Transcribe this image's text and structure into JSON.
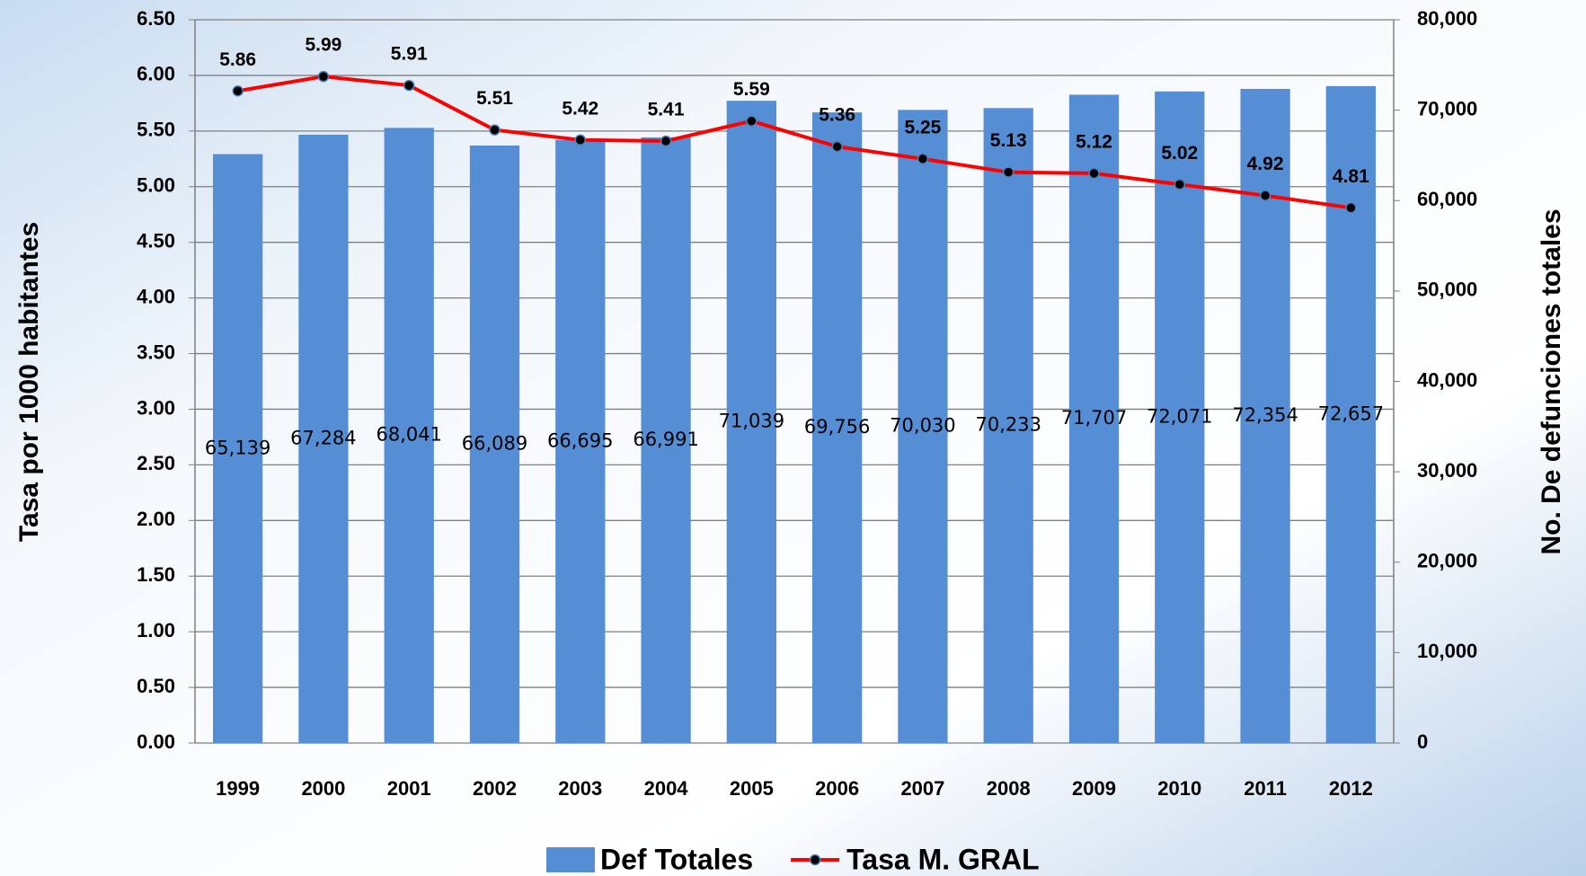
{
  "chart_data": {
    "type": "bar-line",
    "categories": [
      "1999",
      "2000",
      "2001",
      "2002",
      "2003",
      "2004",
      "2005",
      "2006",
      "2007",
      "2008",
      "2009",
      "2010",
      "2011",
      "2012"
    ],
    "series": [
      {
        "name": "Def Totales",
        "type": "bar",
        "color": "#558ed5",
        "axis": "y2",
        "values": [
          65139,
          67284,
          68041,
          66089,
          66695,
          66991,
          71039,
          69756,
          70030,
          70233,
          71707,
          72071,
          72354,
          72657
        ],
        "value_labels": [
          "65,139",
          "67,284",
          "68,041",
          "66,089",
          "66,695",
          "66,991",
          "71,039",
          "69,756",
          "70,030",
          "70,233",
          "71,707",
          "72,071",
          "72,354",
          "72,657"
        ]
      },
      {
        "name": "Tasa M. GRAL",
        "type": "line",
        "color": "#ff0000",
        "values": [
          5.86,
          5.99,
          5.91,
          5.51,
          5.42,
          5.41,
          5.59,
          5.36,
          5.25,
          5.13,
          5.12,
          5.02,
          4.92,
          4.81
        ]
      }
    ],
    "ylabel": "Tasa por 1000 habitantes",
    "y2label": "No. De defunciones totales",
    "ylim": [
      0,
      6.5
    ],
    "yticks": [
      {
        "value": 0,
        "label": "0.00"
      },
      {
        "value": 0.5,
        "label": "0.50"
      },
      {
        "value": 1,
        "label": "1.00"
      },
      {
        "value": 1.5,
        "label": "1.50"
      },
      {
        "value": 2,
        "label": "2.00"
      },
      {
        "value": 2.5,
        "label": "2.50"
      },
      {
        "value": 3,
        "label": "3.00"
      },
      {
        "value": 3.5,
        "label": "3.50"
      },
      {
        "value": 4,
        "label": "4.00"
      },
      {
        "value": 4.5,
        "label": "4.50"
      },
      {
        "value": 5,
        "label": "5.00"
      },
      {
        "value": 5.5,
        "label": "5.50"
      },
      {
        "value": 6,
        "label": "6.00"
      },
      {
        "value": 6.5,
        "label": "6.50"
      }
    ],
    "y2lim": [
      0,
      80000
    ],
    "y2ticks": [
      0,
      {
        "value": 10000,
        "label": "10,000"
      },
      {
        "value": 20000,
        "label": "20,000"
      },
      {
        "value": 30000,
        "label": "30,000"
      },
      {
        "value": 40000,
        "label": "40,000"
      },
      {
        "value": 50000,
        "label": "50,000"
      },
      {
        "value": 60000,
        "label": "60,000"
      },
      {
        "value": 70000,
        "label": "70,000"
      },
      {
        "value": 80000,
        "label": "80,000"
      }
    ],
    "grid": true,
    "legend": "bottom"
  }
}
